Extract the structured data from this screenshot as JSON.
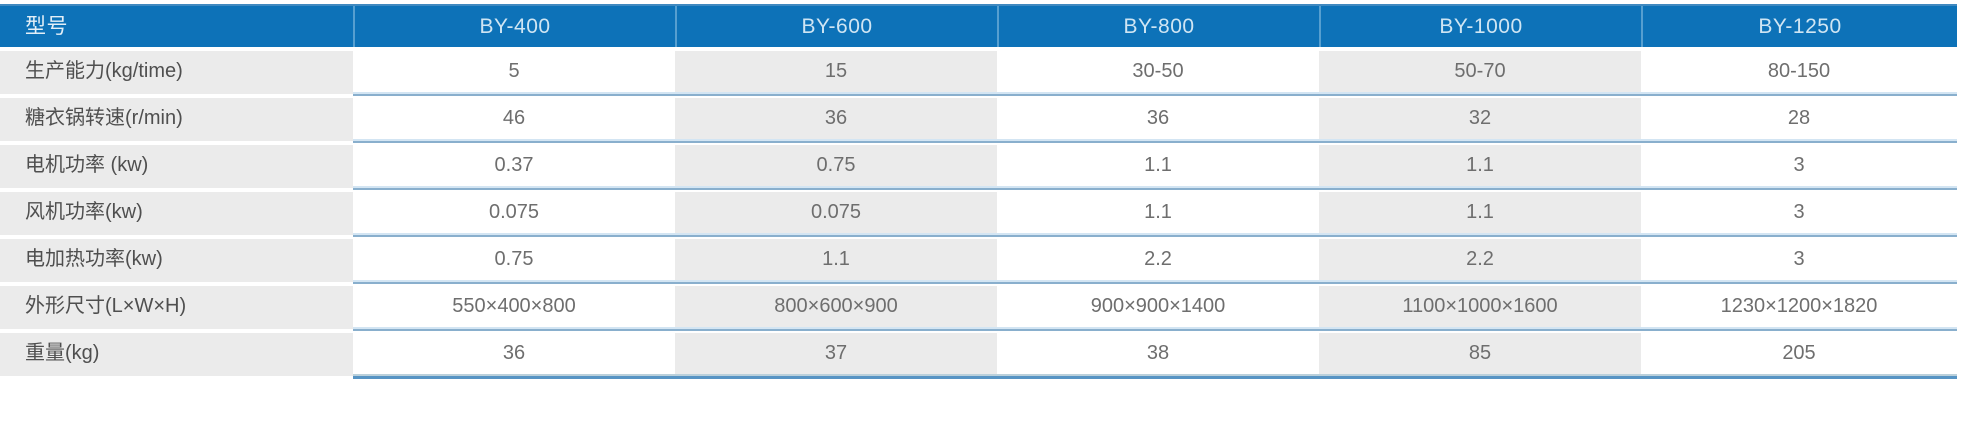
{
  "table": {
    "header": {
      "model_label": "型号",
      "models": [
        "BY-400",
        "BY-600",
        "BY-800",
        "BY-1000",
        "BY-1250"
      ]
    },
    "rows": [
      {
        "label": "生产能力(kg/time)",
        "values": [
          "5",
          "15",
          "30-50",
          "50-70",
          "80-150"
        ]
      },
      {
        "label": "糖衣锅转速(r/min)",
        "values": [
          "46",
          "36",
          "36",
          "32",
          "28"
        ]
      },
      {
        "label": "电机功率 (kw)",
        "values": [
          "0.37",
          "0.75",
          "1.1",
          "1.1",
          "3"
        ]
      },
      {
        "label": "风机功率(kw)",
        "values": [
          "0.075",
          "0.075",
          "1.1",
          "1.1",
          "3"
        ]
      },
      {
        "label": "电加热功率(kw)",
        "values": [
          "0.75",
          "1.1",
          "2.2",
          "2.2",
          "3"
        ]
      },
      {
        "label": "外形尺寸(L×W×H)",
        "values": [
          "550×400×800",
          "800×600×900",
          "900×900×1400",
          "1100×1000×1600",
          "1230×1200×1820"
        ]
      },
      {
        "label": "重量(kg)",
        "values": [
          "36",
          "37",
          "38",
          "85",
          "205"
        ]
      }
    ],
    "colors": {
      "header_bg": "#0d72b8",
      "header_text": "#cfe5f3",
      "label_bg": "#ebebeb",
      "alt_column_bg": "#ebebeb",
      "separator_light": "#d3e5f3",
      "separator_dark": "#89afcd",
      "bottom_border": "#5794c4"
    }
  }
}
